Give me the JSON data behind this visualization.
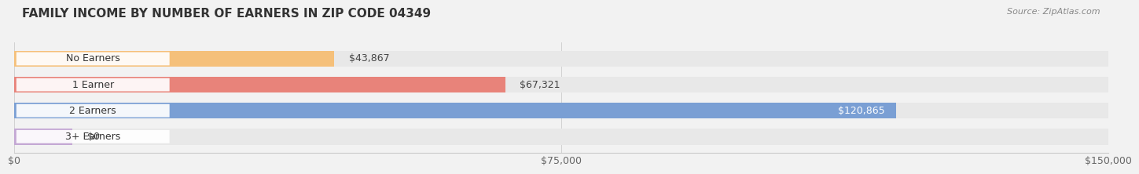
{
  "title": "FAMILY INCOME BY NUMBER OF EARNERS IN ZIP CODE 04349",
  "source": "Source: ZipAtlas.com",
  "categories": [
    "No Earners",
    "1 Earner",
    "2 Earners",
    "3+ Earners"
  ],
  "values": [
    43867,
    67321,
    120865,
    0
  ],
  "bar_colors": [
    "#f5c07a",
    "#e8837a",
    "#7a9fd4",
    "#c4a8d4"
  ],
  "label_colors": [
    "#333333",
    "#333333",
    "#ffffff",
    "#333333"
  ],
  "xlim": [
    0,
    150000
  ],
  "xticks": [
    0,
    75000,
    150000
  ],
  "xtick_labels": [
    "$0",
    "$75,000",
    "$150,000"
  ],
  "background_color": "#f2f2f2",
  "bar_background_color": "#e8e8e8",
  "bar_height": 0.62,
  "title_fontsize": 11,
  "source_fontsize": 8,
  "cat_fontsize": 9,
  "value_fontsize": 9,
  "zero_bar_width": 8000
}
